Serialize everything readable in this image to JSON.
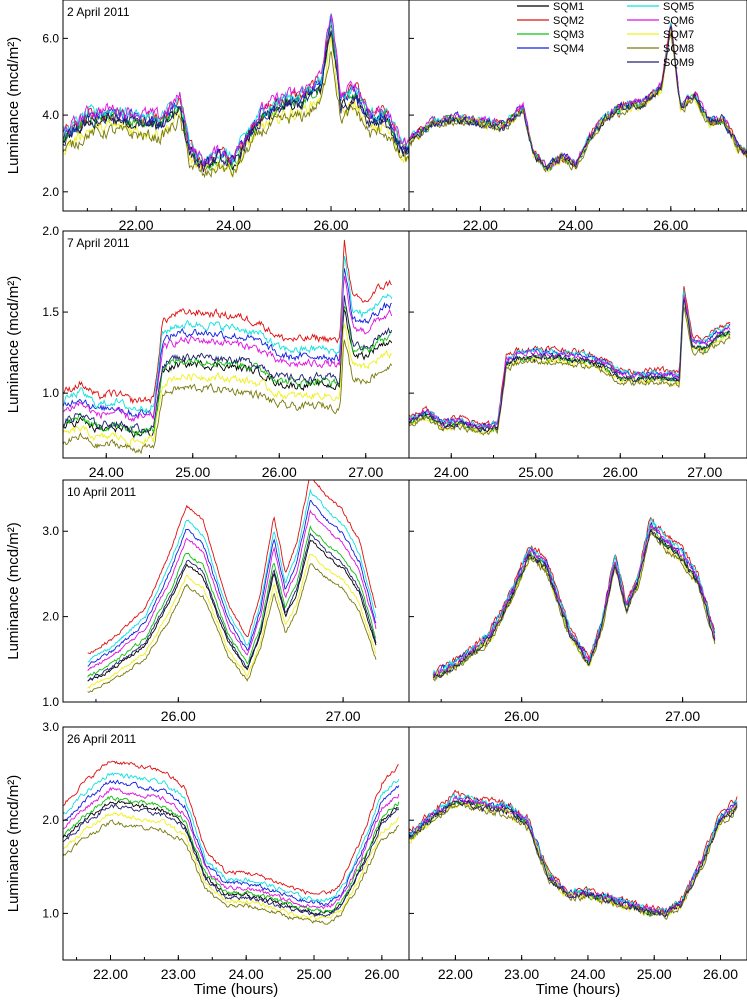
{
  "figure": {
    "y_axis_label": "Luminance (mcd/m²)",
    "x_axis_label": "Time (hours)"
  },
  "chart_data": [
    {
      "type": "line",
      "title": "2 April 2011",
      "xlim": [
        20.5,
        27.6
      ],
      "ylim": [
        1.5,
        7.0
      ],
      "xticks": [
        "22.00",
        "24.00",
        "26.00"
      ],
      "xtick_values": [
        22,
        24,
        26
      ],
      "yticks": [
        "2.0",
        "4.0",
        "6.0"
      ],
      "ytick_values": [
        2,
        4,
        6
      ],
      "ylabel": "Luminance (mcd/m²)",
      "xlabel": "",
      "legend": "top-right",
      "series": [
        "SQM1",
        "SQM2",
        "SQM3",
        "SQM4",
        "SQM5",
        "SQM6",
        "SQM7",
        "SQM8",
        "SQM9"
      ],
      "reference_series": [
        [
          20.5,
          3.3
        ],
        [
          21.0,
          3.8
        ],
        [
          21.5,
          3.9
        ],
        [
          22.0,
          3.8
        ],
        [
          22.5,
          3.7
        ],
        [
          22.9,
          4.2
        ],
        [
          23.1,
          3.0
        ],
        [
          23.4,
          2.6
        ],
        [
          23.7,
          2.9
        ],
        [
          24.0,
          2.7
        ],
        [
          24.3,
          3.4
        ],
        [
          24.6,
          3.9
        ],
        [
          25.0,
          4.2
        ],
        [
          25.4,
          4.3
        ],
        [
          25.8,
          4.7
        ],
        [
          26.0,
          6.3
        ],
        [
          26.2,
          4.2
        ],
        [
          26.5,
          4.5
        ],
        [
          26.8,
          3.8
        ],
        [
          27.1,
          3.9
        ],
        [
          27.4,
          3.2
        ],
        [
          27.6,
          3.0
        ]
      ],
      "corrected": {
        "xticks": [
          "22.00",
          "24.00",
          "26.00"
        ],
        "xtick_values": [
          22,
          24,
          26
        ]
      }
    },
    {
      "type": "line",
      "title": "7 April 2011",
      "xlim": [
        23.5,
        27.5
      ],
      "ylim": [
        0.6,
        2.0
      ],
      "xticks": [
        "24.00",
        "25.00",
        "26.00",
        "27.00"
      ],
      "xtick_values": [
        24,
        25,
        26,
        27
      ],
      "yticks": [
        "1.0",
        "1.5",
        "2.0"
      ],
      "ytick_values": [
        1.0,
        1.5,
        2.0
      ],
      "ylabel": "Luminance (mcd/m²)",
      "xlabel": "",
      "series": [
        "SQM1",
        "SQM2",
        "SQM3",
        "SQM4",
        "SQM5",
        "SQM6",
        "SQM7",
        "SQM8",
        "SQM9"
      ],
      "reference_series": [
        [
          23.5,
          0.82
        ],
        [
          23.7,
          0.87
        ],
        [
          23.9,
          0.8
        ],
        [
          24.1,
          0.82
        ],
        [
          24.3,
          0.78
        ],
        [
          24.55,
          0.79
        ],
        [
          24.65,
          1.18
        ],
        [
          24.8,
          1.22
        ],
        [
          25.0,
          1.23
        ],
        [
          25.3,
          1.22
        ],
        [
          25.6,
          1.2
        ],
        [
          25.8,
          1.17
        ],
        [
          26.0,
          1.1
        ],
        [
          26.2,
          1.09
        ],
        [
          26.5,
          1.1
        ],
        [
          26.7,
          1.08
        ],
        [
          26.75,
          1.6
        ],
        [
          26.85,
          1.3
        ],
        [
          27.0,
          1.28
        ],
        [
          27.15,
          1.35
        ],
        [
          27.3,
          1.38
        ]
      ],
      "corrected": {
        "xticks": [
          "24.00",
          "25.00",
          "26.00",
          "27.00"
        ],
        "xtick_values": [
          24,
          25,
          26,
          27
        ]
      }
    },
    {
      "type": "line",
      "title": "10 April 2011",
      "xlim": [
        25.3,
        27.4
      ],
      "ylim": [
        1.0,
        3.6
      ],
      "xticks": [
        "26.00",
        "27.00"
      ],
      "xtick_values": [
        26,
        27
      ],
      "yticks": [
        "1.0",
        "2.0",
        "3.0"
      ],
      "ytick_values": [
        1,
        2,
        3
      ],
      "ylabel": "Luminance (mcd/m²)",
      "xlabel": "",
      "series": [
        "SQM1",
        "SQM2",
        "SQM3",
        "SQM4",
        "SQM5",
        "SQM6",
        "SQM7",
        "SQM8",
        "SQM9"
      ],
      "reference_series": [
        [
          25.45,
          1.3
        ],
        [
          25.6,
          1.45
        ],
        [
          25.8,
          1.75
        ],
        [
          25.95,
          2.3
        ],
        [
          26.05,
          2.75
        ],
        [
          26.15,
          2.6
        ],
        [
          26.3,
          1.8
        ],
        [
          26.42,
          1.45
        ],
        [
          26.5,
          1.9
        ],
        [
          26.58,
          2.65
        ],
        [
          26.65,
          2.1
        ],
        [
          26.72,
          2.4
        ],
        [
          26.8,
          3.05
        ],
        [
          26.9,
          2.85
        ],
        [
          27.0,
          2.7
        ],
        [
          27.1,
          2.4
        ],
        [
          27.2,
          1.75
        ]
      ],
      "corrected": {
        "xticks": [
          "26.00",
          "27.00"
        ],
        "xtick_values": [
          26,
          27
        ]
      }
    },
    {
      "type": "line",
      "title": "26 April 2011",
      "xlim": [
        21.3,
        26.4
      ],
      "ylim": [
        0.5,
        3.0
      ],
      "xticks": [
        "22.00",
        "23.00",
        "24.00",
        "25.00",
        "26.00"
      ],
      "xtick_values": [
        22,
        23,
        24,
        25,
        26
      ],
      "yticks": [
        "1.0",
        "2.0",
        "3.0"
      ],
      "ytick_values": [
        1,
        2,
        3
      ],
      "ylabel": "Luminance (mcd/m²)",
      "xlabel": "Time (hours)",
      "series": [
        "SQM1",
        "SQM2",
        "SQM3",
        "SQM4",
        "SQM5",
        "SQM6",
        "SQM7",
        "SQM8",
        "SQM9"
      ],
      "reference_series": [
        [
          21.3,
          1.8
        ],
        [
          21.6,
          2.0
        ],
        [
          22.0,
          2.2
        ],
        [
          22.4,
          2.15
        ],
        [
          22.8,
          2.1
        ],
        [
          23.1,
          1.95
        ],
        [
          23.4,
          1.4
        ],
        [
          23.7,
          1.2
        ],
        [
          24.0,
          1.2
        ],
        [
          24.3,
          1.15
        ],
        [
          24.6,
          1.08
        ],
        [
          24.9,
          1.02
        ],
        [
          25.2,
          1.0
        ],
        [
          25.4,
          1.1
        ],
        [
          25.7,
          1.5
        ],
        [
          26.0,
          2.0
        ],
        [
          26.25,
          2.15
        ]
      ],
      "corrected": {
        "xticks": [
          "22.00",
          "23.00",
          "24.00",
          "25.00",
          "26.00"
        ],
        "xtick_values": [
          22,
          23,
          24,
          25,
          26
        ]
      }
    }
  ],
  "legend": {
    "items": [
      {
        "label": "SQM1",
        "color": "#000000"
      },
      {
        "label": "SQM2",
        "color": "#e01010"
      },
      {
        "label": "SQM3",
        "color": "#10c010"
      },
      {
        "label": "SQM4",
        "color": "#1020e0"
      },
      {
        "label": "SQM5",
        "color": "#10e0e0"
      },
      {
        "label": "SQM6",
        "color": "#e010e0"
      },
      {
        "label": "SQM7",
        "color": "#f0f020"
      },
      {
        "label": "SQM8",
        "color": "#7a7a10"
      },
      {
        "label": "SQM9",
        "color": "#202070"
      }
    ]
  }
}
